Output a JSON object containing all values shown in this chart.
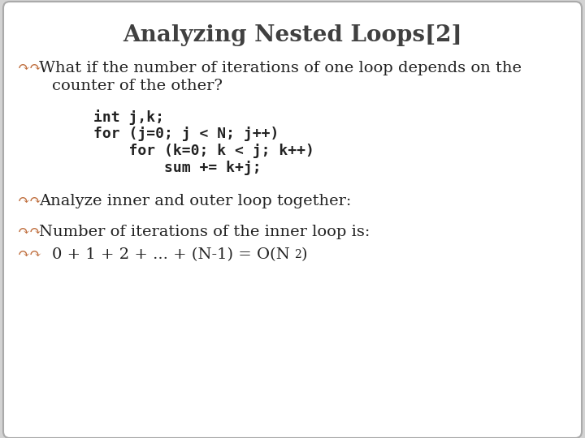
{
  "title": "Analyzing Nested Loops[2]",
  "title_fontsize": 20,
  "title_color": "#404040",
  "bg_color": "#d3d3d3",
  "border_color": "#aaaaaa",
  "bullet_color": "#c07040",
  "text_color": "#222222",
  "code_color": "#222222",
  "bullet_symbol": "↷↷",
  "bullet1_line1": "What if the number of iterations of one loop depends on the",
  "bullet1_line2": "counter of the other?",
  "code_lines": [
    "int j,k;",
    "for (j=0; j < N; j++)",
    "    for (k=0; k < j; k++)",
    "        sum += k+j;"
  ],
  "bullet2_text": "Analyze inner and outer loop together:",
  "bullet3_text": "Number of iterations of the inner loop is:",
  "formula_base": "0 + 1 + 2 + ... + (N-1) = O(N",
  "formula_sup": "2",
  "formula_end": ")"
}
